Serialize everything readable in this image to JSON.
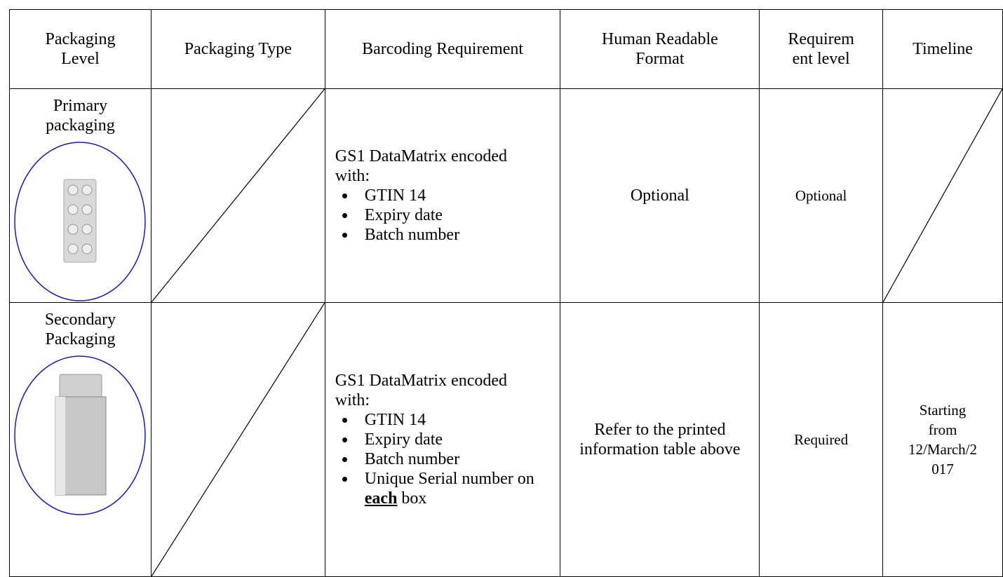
{
  "table": {
    "header": [
      "Packaging Level",
      "Packaging Type",
      "Barcoding Requirement",
      "Human Readable Format",
      "Requirement level",
      "Timeline"
    ],
    "rows": [
      {
        "level": "Primary packaging",
        "barcoding": {
          "intro": "GS1 DataMatrix encoded with:",
          "items": [
            "GTIN 14",
            "Expiry date",
            "Batch number"
          ]
        },
        "human_readable": "Optional",
        "requirement": "Optional"
      },
      {
        "level": "Secondary Packaging",
        "barcoding": {
          "intro": "GS1 DataMatrix encoded with:",
          "items": [
            "GTIN 14",
            "Expiry date",
            "Batch number"
          ],
          "last_item": {
            "before": "Unique Serial number on",
            "emphasis": "each",
            "after": "box"
          }
        },
        "human_readable": "Refer to the printed information table above",
        "requirement": "Required",
        "timeline": "Starting from 12/March/2017"
      }
    ]
  }
}
